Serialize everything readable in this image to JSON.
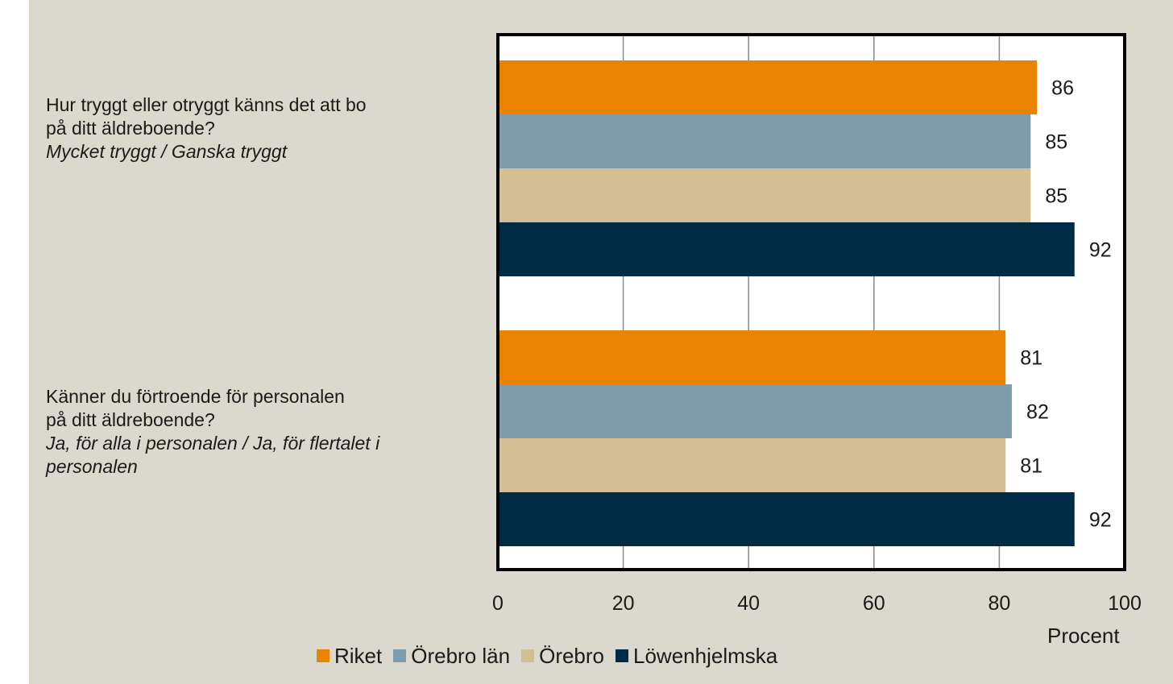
{
  "chart_data": {
    "type": "bar",
    "orientation": "horizontal",
    "categories": [
      {
        "question": "Hur tryggt eller otryggt känns det att bo på ditt äldreboende?",
        "question_line1": "Hur tryggt eller otryggt känns det att bo",
        "question_line2": "på ditt äldreboende?",
        "answer_line1": "Mycket tryggt / Ganska tryggt",
        "answer_line2": ""
      },
      {
        "question": "Känner du förtroende för personalen på ditt äldreboende?",
        "question_line1": "Känner du förtroende för personalen",
        "question_line2": "på ditt äldreboende?",
        "answer_line1": "Ja, för alla i personalen / Ja, för flertalet i",
        "answer_line2": "personalen"
      }
    ],
    "series": [
      {
        "name": "Riket",
        "color": "#e98300",
        "values": [
          86,
          81
        ]
      },
      {
        "name": "Örebro län",
        "color": "#7f9cad",
        "values": [
          85,
          82
        ]
      },
      {
        "name": "Örebro",
        "color": "#d4bf95",
        "values": [
          85,
          81
        ]
      },
      {
        "name": "Löwenhjelmska",
        "color": "#002b45",
        "values": [
          92,
          92
        ]
      }
    ],
    "x_ticks": [
      0,
      20,
      40,
      60,
      80,
      100
    ],
    "xlim": [
      0,
      100
    ],
    "xlabel": "Procent",
    "grid": "vertical",
    "legend_position": "bottom"
  }
}
